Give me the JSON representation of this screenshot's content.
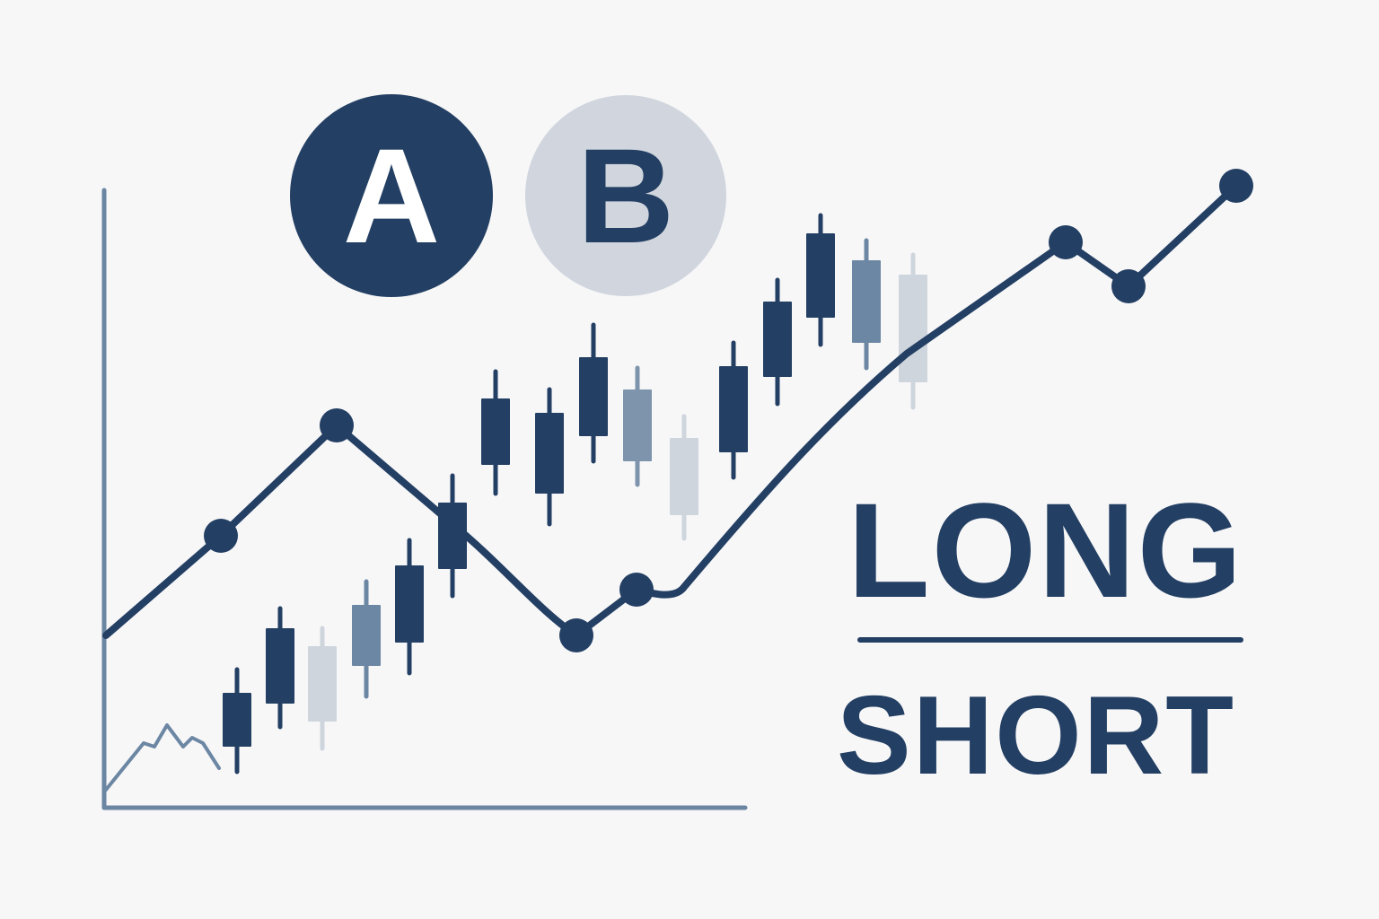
{
  "badges": {
    "a": {
      "letter": "A",
      "fill": "#233f63",
      "text_color": "#ffffff"
    },
    "b": {
      "letter": "B",
      "fill": "#d1d6de",
      "text_color": "#233f63"
    }
  },
  "labels": {
    "long": "LONG",
    "short": "SHORT"
  },
  "colors": {
    "navy": "#233f63",
    "steel": "#6c87a3",
    "slate": "#7d94ac",
    "light": "#cfd5dd",
    "axis": "#6b86a3",
    "background": "#f7f7f8"
  },
  "icons": [
    "line-chart-icon",
    "candlestick-chart-icon",
    "axis-icon"
  ]
}
